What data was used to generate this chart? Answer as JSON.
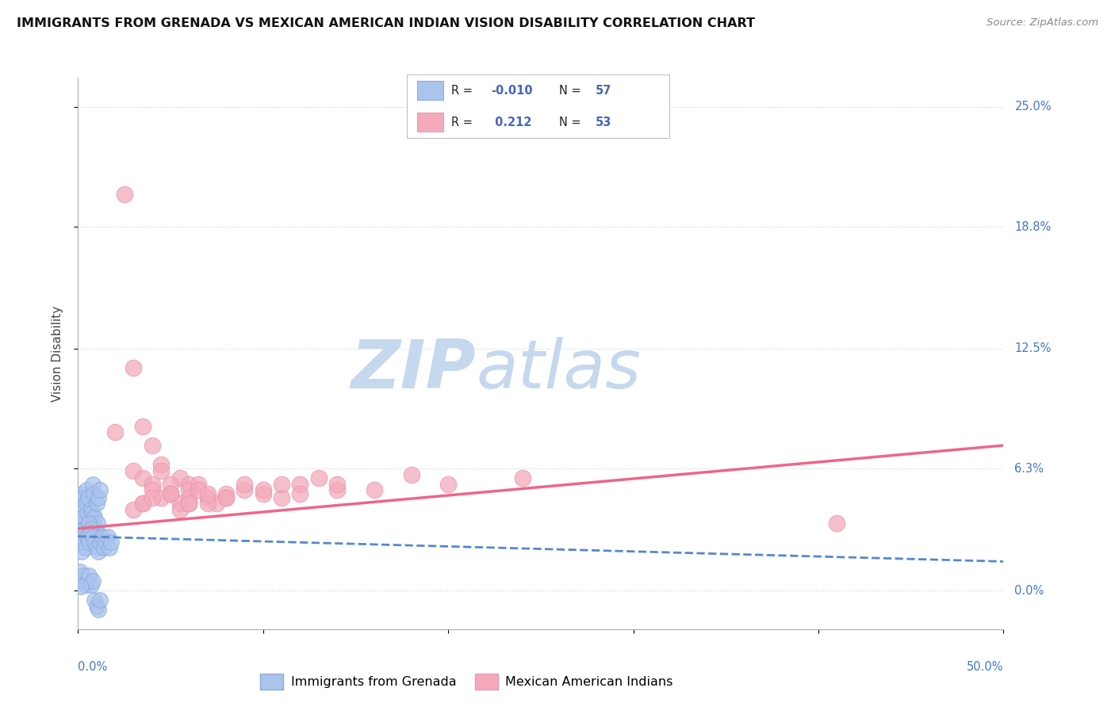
{
  "title": "IMMIGRANTS FROM GRENADA VS MEXICAN AMERICAN INDIAN VISION DISABILITY CORRELATION CHART",
  "source": "Source: ZipAtlas.com",
  "ylabel": "Vision Disability",
  "y_tick_labels": [
    "0.0%",
    "6.3%",
    "12.5%",
    "18.8%",
    "25.0%"
  ],
  "y_tick_values": [
    0.0,
    6.3,
    12.5,
    18.8,
    25.0
  ],
  "x_range": [
    0.0,
    50.0
  ],
  "y_range": [
    -2.0,
    26.5
  ],
  "series1_color": "#aac4ee",
  "series2_color": "#f4aabb",
  "regression1_color": "#5588cc",
  "regression2_color": "#ee6688",
  "watermark_zip": "ZIP",
  "watermark_atlas": "atlas",
  "watermark_color_zip": "#c5d8ee",
  "watermark_color_atlas": "#c5d8ee",
  "background_color": "#ffffff",
  "series1_name": "Immigrants from Grenada",
  "series2_name": "Mexican American Indians",
  "legend_r1": "R = -0.010",
  "legend_n1": "N = 57",
  "legend_r2": "R =  0.212",
  "legend_n2": "N = 53",
  "R1": -0.01,
  "N1": 57,
  "R2": 0.212,
  "N2": 53,
  "grenada_x": [
    0.1,
    0.2,
    0.15,
    0.3,
    0.25,
    0.4,
    0.35,
    0.5,
    0.45,
    0.6,
    0.55,
    0.7,
    0.65,
    0.8,
    0.75,
    0.9,
    0.85,
    1.0,
    0.95,
    1.1,
    1.05,
    1.2,
    0.3,
    0.4,
    0.5,
    0.6,
    0.7,
    0.2,
    0.3,
    0.4,
    0.5,
    0.6,
    0.7,
    0.8,
    0.9,
    1.0,
    1.1,
    1.2,
    1.3,
    1.4,
    1.5,
    1.6,
    1.7,
    1.8,
    0.1,
    0.2,
    0.3,
    0.4,
    0.5,
    0.6,
    0.7,
    0.8,
    0.9,
    1.0,
    1.1,
    1.2,
    0.15
  ],
  "grenada_y": [
    3.5,
    4.2,
    5.0,
    3.8,
    4.8,
    4.5,
    3.2,
    4.0,
    5.2,
    3.5,
    4.8,
    4.2,
    3.0,
    5.5,
    4.0,
    3.8,
    5.0,
    4.5,
    3.2,
    4.8,
    3.5,
    5.2,
    2.5,
    3.0,
    2.8,
    3.5,
    3.2,
    2.0,
    2.5,
    2.2,
    2.8,
    2.5,
    3.0,
    2.8,
    2.5,
    2.2,
    2.0,
    2.5,
    2.8,
    2.2,
    2.5,
    2.8,
    2.2,
    2.5,
    1.0,
    0.5,
    0.8,
    0.3,
    0.5,
    0.8,
    0.3,
    0.5,
    -0.5,
    -0.8,
    -1.0,
    -0.5,
    0.2
  ],
  "mexican_x": [
    2.5,
    3.0,
    2.0,
    3.5,
    4.0,
    4.5,
    3.0,
    3.5,
    4.0,
    4.5,
    5.0,
    5.5,
    6.0,
    3.5,
    4.0,
    4.5,
    5.0,
    5.5,
    6.0,
    6.5,
    7.0,
    7.5,
    8.0,
    5.0,
    5.5,
    6.0,
    6.5,
    7.0,
    8.0,
    9.0,
    10.0,
    11.0,
    12.0,
    14.0,
    6.0,
    7.0,
    8.0,
    9.0,
    10.0,
    11.0,
    12.0,
    13.0,
    14.0,
    16.0,
    18.0,
    20.0,
    24.0,
    41.0,
    3.0,
    3.5,
    4.0,
    5.0,
    6.0
  ],
  "mexican_y": [
    20.5,
    11.5,
    8.2,
    8.5,
    7.5,
    6.5,
    6.2,
    5.8,
    5.5,
    6.2,
    5.0,
    5.8,
    5.5,
    4.5,
    5.2,
    4.8,
    5.0,
    4.5,
    5.2,
    5.5,
    4.8,
    4.5,
    5.0,
    5.5,
    4.2,
    4.8,
    5.2,
    4.5,
    4.8,
    5.2,
    5.0,
    4.8,
    5.5,
    5.2,
    4.5,
    5.0,
    4.8,
    5.5,
    5.2,
    5.5,
    5.0,
    5.8,
    5.5,
    5.2,
    6.0,
    5.5,
    5.8,
    3.5,
    4.2,
    4.5,
    4.8,
    5.0,
    4.5
  ],
  "reg1_x_start": 0.0,
  "reg1_x_end": 50.0,
  "reg1_y_start": 2.8,
  "reg1_y_end": 1.5,
  "reg2_x_start": 0.0,
  "reg2_x_end": 50.0,
  "reg2_y_start": 3.2,
  "reg2_y_end": 7.5
}
